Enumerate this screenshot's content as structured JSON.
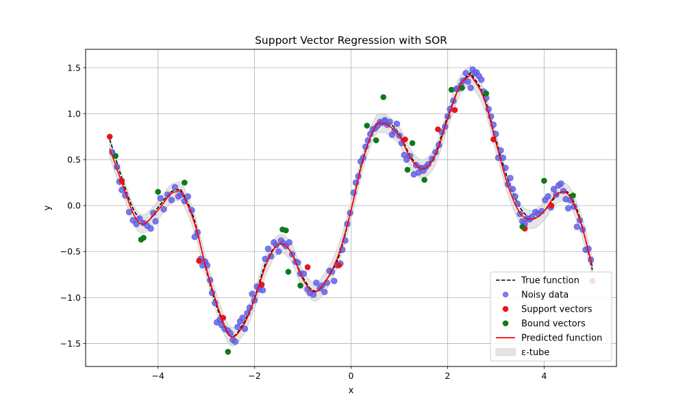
{
  "chart_data": {
    "type": "scatter",
    "title": "Support Vector Regression with SOR",
    "xlabel": "x",
    "ylabel": "y",
    "xlim": [
      -5.5,
      5.5
    ],
    "ylim": [
      -1.75,
      1.7
    ],
    "xticks": [
      -4,
      -2,
      0,
      2,
      4
    ],
    "yticks": [
      -1.5,
      -1.0,
      -0.5,
      0.0,
      0.5,
      1.0,
      1.5
    ],
    "xtick_labels": [
      "−4",
      "−2",
      "0",
      "2",
      "4"
    ],
    "ytick_labels": [
      "−1.5",
      "−1.0",
      "−0.5",
      "0.0",
      "0.5",
      "1.0",
      "1.5"
    ],
    "grid": true,
    "legend_position": "lower-right",
    "epsilon": 0.1,
    "colors": {
      "true_function": "#000000",
      "noisy_data": "#6464ea",
      "support_vectors": "#e8141c",
      "bound_vectors": "#0e7a1c",
      "predicted_function": "#ff0000",
      "epsilon_tube": "#d3d3d3"
    },
    "legend": [
      {
        "label": "True function",
        "kind": "dashed-line",
        "color": "#000000"
      },
      {
        "label": "Noisy data",
        "kind": "marker",
        "color": "#6464ea"
      },
      {
        "label": "Support vectors",
        "kind": "marker",
        "color": "#e8141c"
      },
      {
        "label": "Bound vectors",
        "kind": "marker",
        "color": "#0e7a1c"
      },
      {
        "label": "Predicted function",
        "kind": "solid-line",
        "color": "#ff0000"
      },
      {
        "label": "ε-tube",
        "kind": "patch",
        "color": "#d3d3d3"
      }
    ],
    "true_function": {
      "name": "True function",
      "x": [
        -5.0,
        -4.75,
        -4.5,
        -4.25,
        -4.0,
        -3.75,
        -3.6,
        -3.5,
        -3.25,
        -3.0,
        -2.75,
        -2.5,
        -2.25,
        -2.0,
        -1.75,
        -1.5,
        -1.25,
        -1.0,
        -0.75,
        -0.5,
        -0.25,
        0.0,
        0.25,
        0.5,
        0.65,
        0.75,
        1.0,
        1.25,
        1.5,
        1.75,
        2.0,
        2.25,
        2.45,
        2.5,
        2.75,
        3.0,
        3.25,
        3.5,
        3.75,
        4.0,
        4.25,
        4.5,
        4.75,
        5.0
      ],
      "y": [
        0.72,
        0.3,
        -0.05,
        -0.18,
        -0.02,
        0.14,
        0.17,
        0.15,
        -0.15,
        -0.7,
        -1.15,
        -1.42,
        -1.3,
        -1.0,
        -0.6,
        -0.42,
        -0.5,
        -0.78,
        -0.93,
        -0.8,
        -0.55,
        -0.05,
        0.52,
        0.86,
        0.93,
        0.92,
        0.78,
        0.52,
        0.42,
        0.58,
        0.97,
        1.3,
        1.43,
        1.42,
        1.2,
        0.72,
        0.28,
        -0.02,
        -0.14,
        -0.06,
        0.1,
        0.14,
        -0.15,
        -0.7
      ]
    },
    "predicted_function": {
      "name": "Predicted function",
      "x": [
        -5.0,
        -4.75,
        -4.5,
        -4.3,
        -4.0,
        -3.75,
        -3.6,
        -3.5,
        -3.25,
        -3.0,
        -2.75,
        -2.5,
        -2.25,
        -2.0,
        -1.75,
        -1.5,
        -1.25,
        -1.0,
        -0.75,
        -0.5,
        -0.25,
        0.0,
        0.25,
        0.5,
        0.65,
        0.75,
        1.0,
        1.25,
        1.5,
        1.75,
        2.0,
        2.25,
        2.45,
        2.5,
        2.75,
        3.0,
        3.25,
        3.5,
        3.75,
        4.0,
        4.25,
        4.5,
        4.75,
        5.0
      ],
      "y": [
        0.62,
        0.25,
        -0.1,
        -0.2,
        -0.05,
        0.12,
        0.15,
        0.13,
        -0.18,
        -0.68,
        -1.12,
        -1.42,
        -1.32,
        -1.02,
        -0.63,
        -0.42,
        -0.5,
        -0.8,
        -0.94,
        -0.8,
        -0.52,
        -0.05,
        0.5,
        0.86,
        0.89,
        0.88,
        0.76,
        0.5,
        0.4,
        0.55,
        0.94,
        1.3,
        1.41,
        1.4,
        1.17,
        0.69,
        0.22,
        -0.08,
        -0.15,
        -0.06,
        0.12,
        0.12,
        -0.17,
        -0.66
      ]
    },
    "noisy_data": {
      "name": "Noisy data",
      "points": [
        [
          -4.95,
          0.58
        ],
        [
          -4.85,
          0.42
        ],
        [
          -4.8,
          0.26
        ],
        [
          -4.75,
          0.17
        ],
        [
          -4.68,
          0.11
        ],
        [
          -4.6,
          -0.07
        ],
        [
          -4.52,
          -0.16
        ],
        [
          -4.45,
          -0.2
        ],
        [
          -4.38,
          -0.14
        ],
        [
          -4.3,
          -0.19
        ],
        [
          -4.22,
          -0.22
        ],
        [
          -4.15,
          -0.25
        ],
        [
          -4.1,
          -0.08
        ],
        [
          -4.05,
          -0.17
        ],
        [
          -3.95,
          0.08
        ],
        [
          -3.88,
          -0.04
        ],
        [
          -3.8,
          0.12
        ],
        [
          -3.72,
          0.06
        ],
        [
          -3.65,
          0.2
        ],
        [
          -3.58,
          0.1
        ],
        [
          -3.52,
          0.12
        ],
        [
          -3.45,
          0.05
        ],
        [
          -3.38,
          0.1
        ],
        [
          -3.3,
          -0.05
        ],
        [
          -3.24,
          -0.34
        ],
        [
          -3.18,
          -0.29
        ],
        [
          -3.12,
          -0.58
        ],
        [
          -3.08,
          -0.65
        ],
        [
          -3.02,
          -0.61
        ],
        [
          -2.98,
          -0.65
        ],
        [
          -2.92,
          -0.81
        ],
        [
          -2.88,
          -0.95
        ],
        [
          -2.82,
          -1.06
        ],
        [
          -2.78,
          -1.27
        ],
        [
          -2.72,
          -1.24
        ],
        [
          -2.68,
          -1.3
        ],
        [
          -2.62,
          -1.34
        ],
        [
          -2.55,
          -1.36
        ],
        [
          -2.5,
          -1.39
        ],
        [
          -2.45,
          -1.46
        ],
        [
          -2.4,
          -1.48
        ],
        [
          -2.35,
          -1.32
        ],
        [
          -2.3,
          -1.26
        ],
        [
          -2.25,
          -1.22
        ],
        [
          -2.2,
          -1.34
        ],
        [
          -2.15,
          -1.17
        ],
        [
          -2.1,
          -1.11
        ],
        [
          -2.05,
          -0.96
        ],
        [
          -2.0,
          -1.03
        ],
        [
          -1.95,
          -0.88
        ],
        [
          -1.9,
          -0.91
        ],
        [
          -1.83,
          -0.92
        ],
        [
          -1.78,
          -0.58
        ],
        [
          -1.72,
          -0.47
        ],
        [
          -1.66,
          -0.55
        ],
        [
          -1.6,
          -0.4
        ],
        [
          -1.55,
          -0.43
        ],
        [
          -1.5,
          -0.5
        ],
        [
          -1.45,
          -0.38
        ],
        [
          -1.4,
          -0.41
        ],
        [
          -1.35,
          -0.44
        ],
        [
          -1.28,
          -0.4
        ],
        [
          -1.22,
          -0.53
        ],
        [
          -1.15,
          -0.61
        ],
        [
          -1.1,
          -0.62
        ],
        [
          -1.05,
          -0.74
        ],
        [
          -0.98,
          -0.74
        ],
        [
          -0.9,
          -0.91
        ],
        [
          -0.85,
          -0.95
        ],
        [
          -0.78,
          -0.97
        ],
        [
          -0.72,
          -0.84
        ],
        [
          -0.65,
          -0.9
        ],
        [
          -0.6,
          -0.87
        ],
        [
          -0.55,
          -0.94
        ],
        [
          -0.5,
          -0.84
        ],
        [
          -0.45,
          -0.71
        ],
        [
          -0.4,
          -0.72
        ],
        [
          -0.35,
          -0.82
        ],
        [
          -0.28,
          -0.65
        ],
        [
          -0.22,
          -0.63
        ],
        [
          -0.18,
          -0.48
        ],
        [
          -0.12,
          -0.38
        ],
        [
          -0.08,
          -0.2
        ],
        [
          -0.02,
          -0.08
        ],
        [
          0.05,
          0.14
        ],
        [
          0.1,
          0.25
        ],
        [
          0.15,
          0.32
        ],
        [
          0.2,
          0.48
        ],
        [
          0.25,
          0.52
        ],
        [
          0.3,
          0.64
        ],
        [
          0.35,
          0.71
        ],
        [
          0.4,
          0.78
        ],
        [
          0.45,
          0.83
        ],
        [
          0.5,
          0.84
        ],
        [
          0.55,
          0.87
        ],
        [
          0.6,
          0.91
        ],
        [
          0.65,
          0.9
        ],
        [
          0.7,
          0.93
        ],
        [
          0.75,
          0.88
        ],
        [
          0.8,
          0.91
        ],
        [
          0.85,
          0.77
        ],
        [
          0.9,
          0.81
        ],
        [
          0.95,
          0.89
        ],
        [
          1.0,
          0.76
        ],
        [
          1.05,
          0.68
        ],
        [
          1.1,
          0.55
        ],
        [
          1.15,
          0.5
        ],
        [
          1.22,
          0.54
        ],
        [
          1.3,
          0.34
        ],
        [
          1.35,
          0.44
        ],
        [
          1.4,
          0.36
        ],
        [
          1.45,
          0.41
        ],
        [
          1.5,
          0.38
        ],
        [
          1.55,
          0.42
        ],
        [
          1.6,
          0.45
        ],
        [
          1.68,
          0.51
        ],
        [
          1.75,
          0.58
        ],
        [
          1.82,
          0.66
        ],
        [
          1.88,
          0.8
        ],
        [
          1.95,
          0.86
        ],
        [
          2.0,
          0.97
        ],
        [
          2.05,
          1.05
        ],
        [
          2.12,
          1.14
        ],
        [
          2.18,
          1.27
        ],
        [
          2.22,
          1.27
        ],
        [
          2.28,
          1.31
        ],
        [
          2.32,
          1.36
        ],
        [
          2.38,
          1.44
        ],
        [
          2.42,
          1.35
        ],
        [
          2.48,
          1.28
        ],
        [
          2.52,
          1.48
        ],
        [
          2.56,
          1.44
        ],
        [
          2.6,
          1.45
        ],
        [
          2.65,
          1.41
        ],
        [
          2.7,
          1.37
        ],
        [
          2.75,
          1.24
        ],
        [
          2.8,
          1.17
        ],
        [
          2.85,
          1.05
        ],
        [
          2.9,
          0.97
        ],
        [
          2.95,
          0.88
        ],
        [
          3.0,
          0.78
        ],
        [
          3.05,
          0.52
        ],
        [
          3.1,
          0.6
        ],
        [
          3.15,
          0.52
        ],
        [
          3.2,
          0.41
        ],
        [
          3.25,
          0.23
        ],
        [
          3.3,
          0.3
        ],
        [
          3.35,
          0.18
        ],
        [
          3.4,
          0.1
        ],
        [
          3.45,
          0.02
        ],
        [
          3.5,
          -0.09
        ],
        [
          3.55,
          -0.17
        ],
        [
          3.6,
          -0.2
        ],
        [
          3.65,
          -0.14
        ],
        [
          3.7,
          -0.15
        ],
        [
          3.75,
          -0.12
        ],
        [
          3.82,
          -0.07
        ],
        [
          3.88,
          -0.09
        ],
        [
          3.95,
          -0.06
        ],
        [
          4.02,
          0.06
        ],
        [
          4.08,
          0.1
        ],
        [
          4.14,
          -0.02
        ],
        [
          4.2,
          0.18
        ],
        [
          4.25,
          0.12
        ],
        [
          4.3,
          0.22
        ],
        [
          4.35,
          0.24
        ],
        [
          4.4,
          0.16
        ],
        [
          4.45,
          0.07
        ],
        [
          4.5,
          -0.03
        ],
        [
          4.55,
          0.06
        ],
        [
          4.62,
          -0.01
        ],
        [
          4.68,
          -0.23
        ],
        [
          4.74,
          -0.16
        ],
        [
          4.8,
          -0.26
        ],
        [
          4.86,
          -0.48
        ],
        [
          4.92,
          -0.47
        ],
        [
          4.97,
          -0.59
        ]
      ]
    },
    "support_vectors": {
      "name": "Support vectors",
      "points": [
        [
          -5.0,
          0.75
        ],
        [
          -4.75,
          0.27
        ],
        [
          -3.15,
          -0.6
        ],
        [
          -2.65,
          -1.22
        ],
        [
          -1.85,
          -0.86
        ],
        [
          -0.9,
          -0.67
        ],
        [
          -0.25,
          -0.65
        ],
        [
          1.12,
          0.72
        ],
        [
          1.8,
          0.83
        ],
        [
          2.15,
          1.04
        ],
        [
          2.95,
          0.72
        ],
        [
          3.6,
          -0.25
        ],
        [
          4.15,
          0.0
        ],
        [
          5.0,
          -0.82
        ]
      ]
    },
    "bound_vectors": {
      "name": "Bound vectors",
      "points": [
        [
          -4.88,
          0.54
        ],
        [
          -4.35,
          -0.37
        ],
        [
          -4.3,
          -0.35
        ],
        [
          -4.0,
          0.15
        ],
        [
          -3.45,
          0.25
        ],
        [
          -2.55,
          -1.59
        ],
        [
          -1.42,
          -0.26
        ],
        [
          -1.35,
          -0.27
        ],
        [
          -1.3,
          -0.72
        ],
        [
          -1.05,
          -0.87
        ],
        [
          0.33,
          0.87
        ],
        [
          0.52,
          0.71
        ],
        [
          0.67,
          1.18
        ],
        [
          1.17,
          0.39
        ],
        [
          1.27,
          0.68
        ],
        [
          1.52,
          0.28
        ],
        [
          2.08,
          1.26
        ],
        [
          2.3,
          1.28
        ],
        [
          2.8,
          1.22
        ],
        [
          3.55,
          -0.23
        ],
        [
          4.0,
          0.27
        ],
        [
          4.6,
          0.11
        ]
      ]
    }
  }
}
